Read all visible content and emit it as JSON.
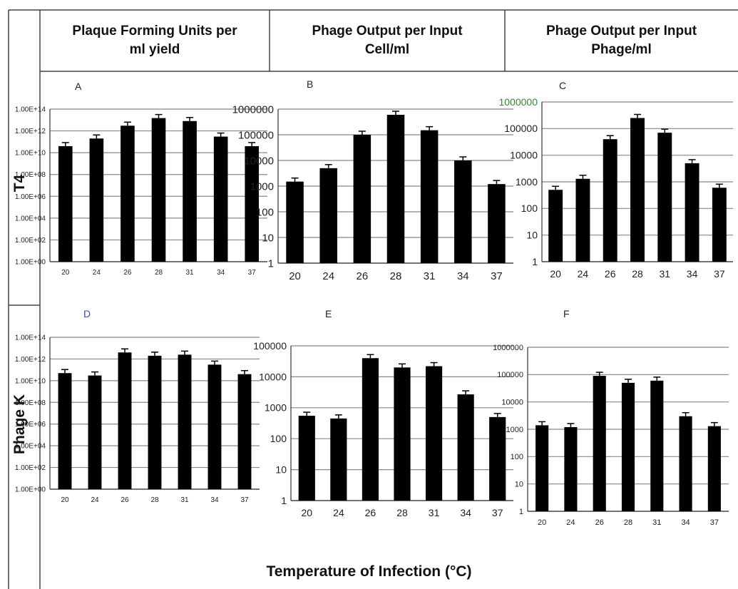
{
  "headers": {
    "col1": "Plaque Forming Units per\nml yield",
    "col2": "Phage Output per Input\nCell/ml",
    "col3": "Phage Output per Input\nPhage/ml"
  },
  "rows": {
    "row1": "T4",
    "row2": "Phage K"
  },
  "x_title": "Temperature of Infection (°C)",
  "colors": {
    "bar": "#000000",
    "grid": "#888888",
    "frame": "#444444",
    "accent_tick": "#2e8b2e"
  },
  "chart_data": [
    {
      "panel": "A",
      "type": "bar",
      "yscale": "log",
      "categories": [
        "20",
        "24",
        "26",
        "28",
        "31",
        "34",
        "37"
      ],
      "values": [
        40000000000.0,
        200000000000.0,
        3000000000000.0,
        15000000000000.0,
        8000000000000.0,
        300000000000.0,
        40000000000.0
      ],
      "ylim": [
        1,
        100000000000000.0
      ],
      "yticks": [
        "1.00E+00",
        "1.00E+02",
        "1.00E+04",
        "1.00E+06",
        "1.00E+08",
        "1.00E+10",
        "1.00E+12",
        "1.00E+14"
      ],
      "grid": true
    },
    {
      "panel": "B",
      "type": "bar",
      "yscale": "log",
      "categories": [
        "20",
        "24",
        "26",
        "28",
        "31",
        "34",
        "37"
      ],
      "values": [
        1500,
        5000,
        100000,
        600000,
        150000,
        10000,
        1200
      ],
      "ylim": [
        1,
        1000000
      ],
      "yticks": [
        "1",
        "10",
        "100",
        "1000",
        "10000",
        "100000",
        "1000000"
      ],
      "grid": true
    },
    {
      "panel": "C",
      "type": "bar",
      "yscale": "log",
      "categories": [
        "20",
        "24",
        "26",
        "28",
        "31",
        "34",
        "37"
      ],
      "values": [
        500,
        1300,
        40000,
        250000,
        70000,
        5000,
        600
      ],
      "ylim": [
        1,
        1000000
      ],
      "yticks": [
        "1",
        "10",
        "100",
        "1000",
        "10000",
        "100000",
        "1000000"
      ],
      "grid": true
    },
    {
      "panel": "D",
      "type": "bar",
      "yscale": "log",
      "categories": [
        "20",
        "24",
        "26",
        "28",
        "31",
        "34",
        "37"
      ],
      "values": [
        50000000000.0,
        30000000000.0,
        4000000000000.0,
        2000000000000.0,
        2500000000000.0,
        300000000000.0,
        40000000000.0
      ],
      "ylim": [
        1,
        100000000000000.0
      ],
      "yticks": [
        "1.00E+00",
        "1.00E+02",
        "1.00E+04",
        "1.00E+06",
        "1.00E+08",
        "1.00E+10",
        "1.00E+12",
        "1.00E+14"
      ],
      "grid": true
    },
    {
      "panel": "E",
      "type": "bar",
      "yscale": "log",
      "categories": [
        "20",
        "24",
        "26",
        "28",
        "31",
        "34",
        "37"
      ],
      "values": [
        550,
        450,
        40000,
        20000,
        22000,
        2700,
        500
      ],
      "ylim": [
        1,
        100000
      ],
      "yticks": [
        "1",
        "10",
        "100",
        "1000",
        "10000",
        "100000"
      ],
      "grid": true
    },
    {
      "panel": "F",
      "type": "bar",
      "yscale": "log",
      "categories": [
        "20",
        "24",
        "26",
        "28",
        "31",
        "34",
        "37"
      ],
      "values": [
        1400,
        1200,
        90000,
        50000,
        60000,
        3000,
        1300
      ],
      "ylim": [
        1,
        1000000
      ],
      "yticks": [
        "1",
        "10",
        "100",
        "1000",
        "10000",
        "100000",
        "1000000"
      ],
      "grid": true
    }
  ]
}
